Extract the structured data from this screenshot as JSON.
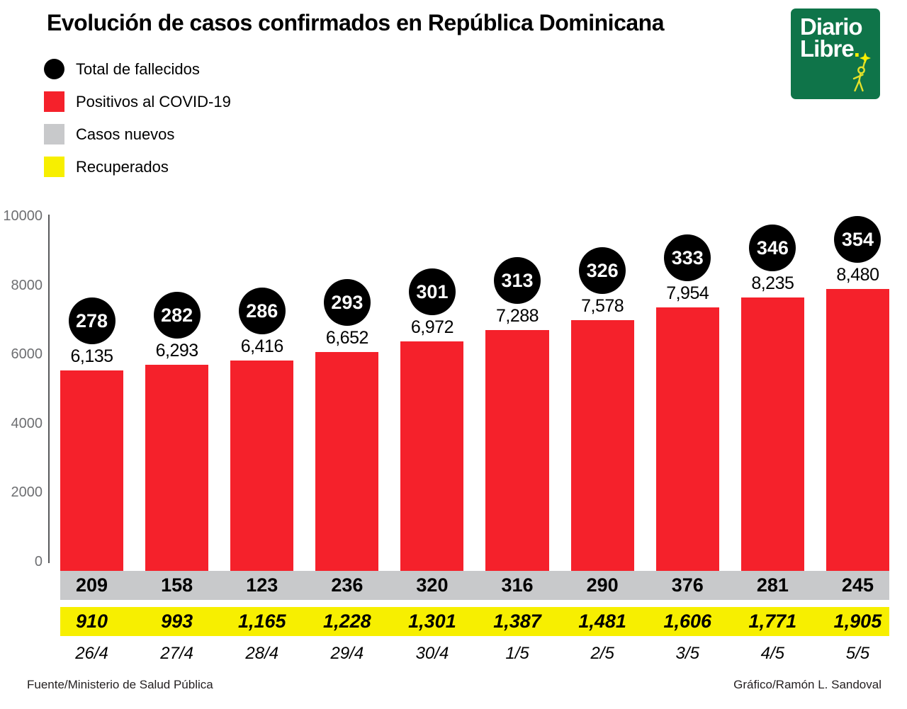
{
  "title": "Evolución de casos confirmados en República Dominicana",
  "legend": [
    {
      "label": "Total de fallecidos",
      "shape": "circle",
      "color": "#000000"
    },
    {
      "label": "Positivos al COVID-19",
      "shape": "square",
      "color": "#f5212b"
    },
    {
      "label": "Casos nuevos",
      "shape": "square",
      "color": "#c8c9cb"
    },
    {
      "label": "Recuperados",
      "shape": "square",
      "color": "#f7ef00"
    }
  ],
  "logo": {
    "line1": "Diario",
    "line2": "Libre",
    "bg_color": "#0f7449",
    "accent_color": "#f7ef00"
  },
  "chart_data": {
    "type": "bar",
    "title": "Evolución de casos confirmados en República Dominicana",
    "x": [
      "26/4",
      "27/4",
      "28/4",
      "29/4",
      "30/4",
      "1/5",
      "2/5",
      "3/5",
      "4/5",
      "5/5"
    ],
    "series": [
      {
        "name": "Positivos al COVID-19",
        "color": "#f5212b",
        "values": [
          6135,
          6293,
          6416,
          6652,
          6972,
          7288,
          7578,
          7954,
          8235,
          8480
        ]
      },
      {
        "name": "Total de fallecidos",
        "color": "#000000",
        "values": [
          278,
          282,
          286,
          293,
          301,
          313,
          326,
          333,
          346,
          354
        ]
      },
      {
        "name": "Casos nuevos",
        "color": "#c8c9cb",
        "values": [
          209,
          158,
          123,
          236,
          320,
          316,
          290,
          376,
          281,
          245
        ]
      },
      {
        "name": "Recuperados",
        "color": "#f7ef00",
        "values": [
          910,
          993,
          1165,
          1228,
          1301,
          1387,
          1481,
          1606,
          1771,
          1905
        ]
      }
    ],
    "ylim": [
      0,
      10000
    ],
    "yticks": [
      0,
      2000,
      4000,
      6000,
      8000,
      10000
    ],
    "grid": false,
    "legend_position": "top-left",
    "xlabel": "",
    "ylabel": ""
  },
  "footer": {
    "source": "Fuente/Ministerio de Salud Pública",
    "credit": "Gráfico/Ramón L. Sandoval"
  }
}
